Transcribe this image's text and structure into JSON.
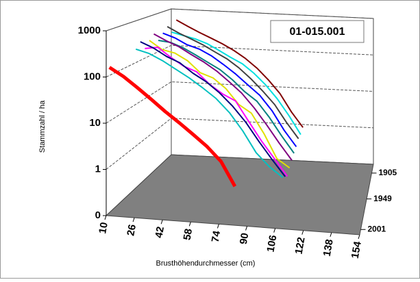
{
  "chart_data": {
    "type": "line3d",
    "title": "01-015.001",
    "ylabel": "Stammzahl / ha",
    "xlabel": "Brusthöhendurchmesser (cm)",
    "log_y": true,
    "ylim": [
      0.1,
      1000
    ],
    "yticks": [
      {
        "value": 0.1,
        "label": "0"
      },
      1,
      10,
      100,
      1000
    ],
    "xlim": [
      10,
      154
    ],
    "xticks": [
      10,
      26,
      42,
      58,
      74,
      90,
      106,
      122,
      138,
      154
    ],
    "zlim": [
      2010,
      1890
    ],
    "zticks": [
      1905,
      1949,
      2001
    ],
    "grid": true,
    "floor_color": "#808080",
    "series": [
      {
        "color": "#ff0000",
        "x": [
          10,
          18,
          26,
          34,
          42,
          50,
          58,
          66,
          74,
          82
        ],
        "values": [
          150,
          100,
          60,
          35,
          20,
          12,
          7,
          4,
          2,
          0.6
        ]
      },
      {
        "color": "#00c0c0",
        "x": [
          18,
          26,
          34,
          42,
          50,
          58,
          66,
          74,
          82,
          90,
          98,
          106
        ],
        "values": [
          300,
          250,
          180,
          120,
          80,
          50,
          30,
          15,
          6,
          2,
          1,
          0.6
        ]
      },
      {
        "color": "#000080",
        "x": [
          18,
          26,
          34,
          42,
          50,
          58,
          66,
          74,
          82,
          90,
          98,
          106
        ],
        "values": [
          400,
          300,
          200,
          150,
          90,
          60,
          35,
          18,
          8,
          3,
          1.2,
          0.5
        ]
      },
      {
        "color": "#ff00ff",
        "x": [
          18,
          26,
          34,
          42,
          50,
          58,
          66,
          74,
          82,
          90,
          98,
          106
        ],
        "values": [
          250,
          280,
          170,
          110,
          85,
          45,
          28,
          20,
          7,
          2.5,
          1,
          0.4
        ]
      },
      {
        "color": "#e0e000",
        "x": [
          18,
          26,
          34,
          42,
          50,
          58,
          66,
          74,
          82,
          90,
          98,
          106
        ],
        "values": [
          350,
          220,
          190,
          130,
          70,
          55,
          32,
          14,
          9,
          3,
          0.8,
          0.5
        ]
      },
      {
        "color": "#800080",
        "x": [
          18,
          26,
          34,
          42,
          50,
          58,
          66,
          74,
          82,
          90,
          98,
          106
        ],
        "values": [
          450,
          320,
          240,
          160,
          110,
          70,
          40,
          22,
          10,
          4,
          1.5,
          0.6
        ]
      },
      {
        "color": "#008080",
        "x": [
          18,
          26,
          34,
          42,
          50,
          58,
          66,
          74,
          82,
          90,
          98,
          106
        ],
        "values": [
          280,
          260,
          200,
          140,
          95,
          65,
          38,
          20,
          12,
          5,
          1.8,
          0.7
        ]
      },
      {
        "color": "#0000ff",
        "x": [
          18,
          26,
          34,
          42,
          50,
          58,
          66,
          74,
          82,
          90,
          98,
          106
        ],
        "values": [
          380,
          300,
          210,
          170,
          120,
          75,
          45,
          25,
          14,
          6,
          2,
          0.8
        ]
      },
      {
        "color": "#404040",
        "x": [
          18,
          26,
          34,
          42,
          50,
          58,
          66,
          74,
          82,
          90,
          98,
          106
        ],
        "values": [
          500,
          350,
          260,
          190,
          130,
          90,
          55,
          30,
          15,
          7,
          2.5,
          1
        ]
      },
      {
        "color": "#00e0e0",
        "x": [
          18,
          26,
          34,
          42,
          50,
          58,
          66,
          74,
          82,
          90,
          98,
          106
        ],
        "values": [
          320,
          270,
          230,
          180,
          125,
          85,
          60,
          35,
          18,
          8,
          3,
          1
        ]
      },
      {
        "color": "#800000",
        "x": [
          18,
          26,
          34,
          42,
          50,
          58,
          66,
          74,
          82,
          90,
          98,
          106
        ],
        "values": [
          600,
          420,
          300,
          220,
          160,
          110,
          70,
          40,
          20,
          9,
          3,
          1.2
        ]
      }
    ]
  }
}
